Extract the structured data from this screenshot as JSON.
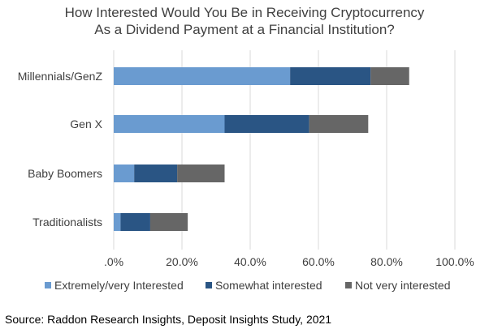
{
  "chart_data": {
    "type": "bar",
    "orientation": "horizontal",
    "stacked": true,
    "title": [
      "How Interested Would You Be in Receiving Cryptocurrency",
      "As a Dividend Payment at a Financial Institution?"
    ],
    "categories": [
      "Millennials/GenZ",
      "Gen X",
      "Baby Boomers",
      "Traditionalists"
    ],
    "series": [
      {
        "name": "Extremely/very Interested",
        "color": "#6A9BD0",
        "values": [
          51.7,
          32.5,
          6.0,
          2.0
        ]
      },
      {
        "name": "Somewhat interested",
        "color": "#2A5584",
        "values": [
          23.6,
          24.8,
          12.6,
          8.7
        ]
      },
      {
        "name": "Not very interested",
        "color": "#666666",
        "values": [
          11.3,
          17.3,
          13.9,
          11.0
        ]
      }
    ],
    "xlim": [
      0,
      100
    ],
    "x_ticks": [
      ".0%",
      "20.0%",
      "40.0%",
      "60.0%",
      "80.0%",
      "100.0%"
    ],
    "grid": true,
    "legend_position": "bottom"
  },
  "footer": {
    "source": "Source: Raddon Research Insights, Deposit Insights Study, 2021"
  }
}
